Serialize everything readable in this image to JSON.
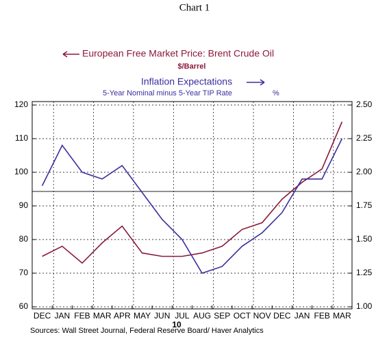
{
  "chart_data": {
    "type": "line",
    "title": "Chart 1",
    "categories": [
      "DEC",
      "JAN",
      "FEB",
      "MAR",
      "APR",
      "MAY",
      "JUN",
      "JUL",
      "AUG",
      "SEP",
      "OCT",
      "NOV",
      "DEC",
      "JAN",
      "FEB",
      "MAR"
    ],
    "year_label": "10",
    "series": [
      {
        "name": "European Free Market Price: Brent Crude Oil",
        "units": "$/Barrel",
        "color": "#8b1a3a",
        "axis": "y",
        "values": [
          75,
          78,
          73,
          79,
          84,
          76,
          75,
          75,
          76,
          78,
          83,
          85,
          92,
          97,
          101,
          115
        ]
      },
      {
        "name": "Inflation Expectations",
        "subtitle": "5-Year Nominal minus 5-Year TIP Rate",
        "units": "%",
        "color": "#3a2e9c",
        "axis": "y2",
        "values": [
          1.9,
          2.2,
          2.0,
          1.95,
          2.05,
          1.85,
          1.65,
          1.5,
          1.25,
          1.3,
          1.45,
          1.55,
          1.7,
          1.95,
          1.95,
          2.25
        ]
      }
    ],
    "ylim": [
      60,
      120
    ],
    "yticks": [
      60,
      70,
      80,
      90,
      100,
      110,
      120
    ],
    "y2lim": [
      1,
      2.5
    ],
    "y2ticks": [
      {
        "value": 1,
        "label": "1.00"
      },
      1.25,
      {
        "value": 1.5,
        "label": "1.50"
      },
      1.75,
      {
        "value": 2,
        "label": "2.00"
      },
      2.25,
      {
        "value": 2.5,
        "label": "2.50"
      }
    ],
    "reference_line": 94.3,
    "grid": true,
    "source": "Sources:  Wall Street Journal, Federal Reserve Board/ Haver Analytics"
  }
}
